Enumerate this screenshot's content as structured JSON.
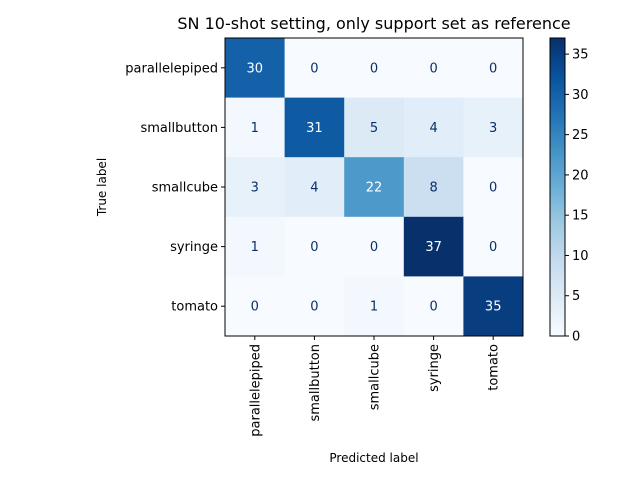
{
  "chart_data": {
    "type": "heatmap",
    "title": "SN 10-shot setting, only support set as reference",
    "xlabel": "Predicted label",
    "ylabel": "True label",
    "row_labels": [
      "parallelepiped",
      "smallbutton",
      "smallcube",
      "syringe",
      "tomato"
    ],
    "col_labels": [
      "parallelepiped",
      "smallbutton",
      "smallcube",
      "syringe",
      "tomato"
    ],
    "matrix": [
      [
        30,
        0,
        0,
        0,
        0
      ],
      [
        1,
        31,
        5,
        4,
        3
      ],
      [
        3,
        4,
        22,
        8,
        0
      ],
      [
        1,
        0,
        0,
        37,
        0
      ],
      [
        0,
        0,
        1,
        0,
        35
      ]
    ],
    "colorbar": {
      "min": 0,
      "max": 37,
      "ticks": [
        0,
        5,
        10,
        15,
        20,
        25,
        30,
        35
      ],
      "colormap": "Blues"
    },
    "grid": false
  }
}
